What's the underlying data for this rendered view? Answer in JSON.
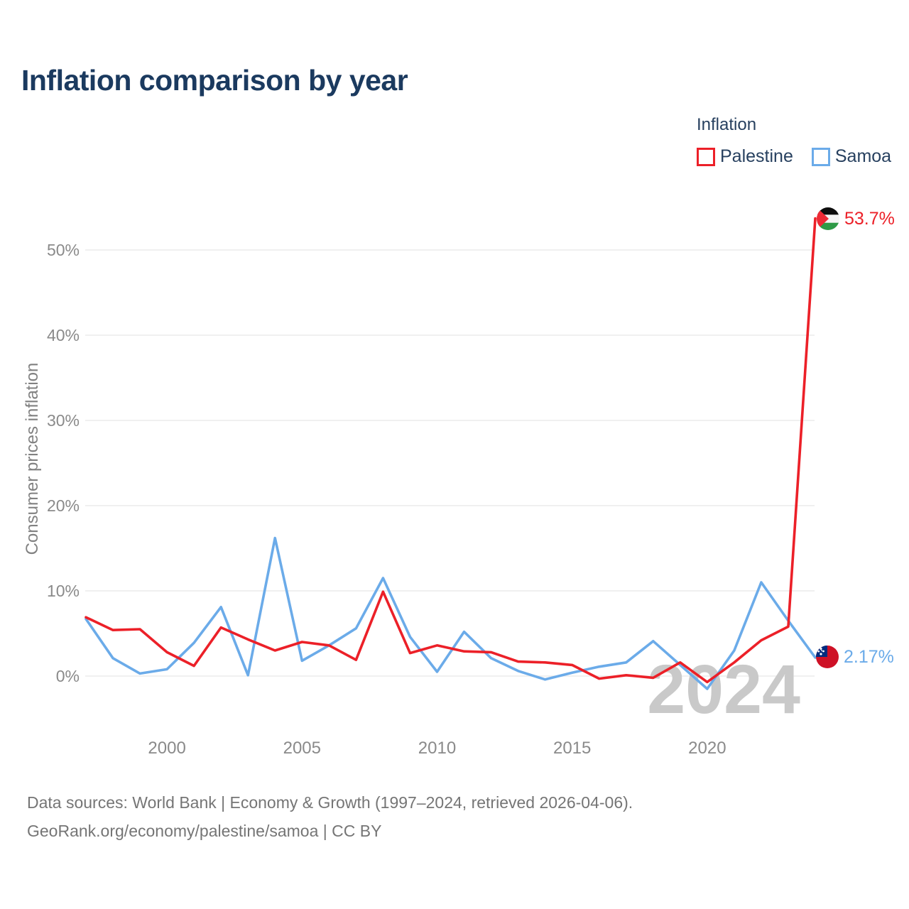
{
  "title": "Inflation comparison by year",
  "legend": {
    "title": "Inflation",
    "items": [
      {
        "label": "Palestine"
      },
      {
        "label": "Samoa"
      }
    ]
  },
  "watermark": "2024",
  "end_labels": {
    "palestine": "53.7%",
    "samoa": "2.17%"
  },
  "footer": {
    "line1": "Data sources: World Bank | Economy & Growth (1997–2024, retrieved 2026-04-06).",
    "line2": "GeoRank.org/economy/palestine/samoa | CC BY"
  },
  "colors": {
    "palestine_red": "#ec2028",
    "samoa_blue": "#6babe9",
    "title_navy": "#1b3a5f",
    "tick_gray": "#8a8a8a",
    "grid_gray": "#ececec",
    "watermark_gray": "#c9c9c9",
    "footer_gray": "#757575"
  },
  "chart_data": {
    "type": "line",
    "title": "Inflation comparison by year",
    "ylabel": "Consumer prices inflation",
    "xlabel": "",
    "x": [
      1997,
      1998,
      1999,
      2000,
      2001,
      2002,
      2003,
      2004,
      2005,
      2006,
      2007,
      2008,
      2009,
      2010,
      2011,
      2012,
      2013,
      2014,
      2015,
      2016,
      2017,
      2018,
      2019,
      2020,
      2021,
      2022,
      2023,
      2024
    ],
    "series": [
      {
        "name": "Palestine",
        "color": "#ec2028",
        "values": [
          6.9,
          5.4,
          5.5,
          2.8,
          1.2,
          5.7,
          4.3,
          3.0,
          4.0,
          3.6,
          1.9,
          9.9,
          2.7,
          3.6,
          2.9,
          2.8,
          1.7,
          1.6,
          1.3,
          -0.3,
          0.1,
          -0.2,
          1.6,
          -0.7,
          1.6,
          4.2,
          5.8,
          53.7
        ]
      },
      {
        "name": "Samoa",
        "color": "#6babe9",
        "values": [
          6.7,
          2.1,
          0.3,
          0.8,
          3.9,
          8.1,
          0.1,
          16.2,
          1.8,
          3.6,
          5.6,
          11.5,
          4.6,
          0.5,
          5.2,
          2.1,
          0.6,
          -0.4,
          0.4,
          1.1,
          1.6,
          4.1,
          1.3,
          -1.5,
          3.0,
          11.0,
          6.5,
          2.17
        ]
      }
    ],
    "yticks": [
      0,
      10,
      20,
      30,
      40,
      50
    ],
    "xticks": [
      2000,
      2005,
      2010,
      2015,
      2020
    ],
    "ylim": [
      -5,
      55
    ],
    "xlim": [
      1997,
      2024
    ],
    "grid": true,
    "legend_position": "top-right",
    "end_annotations": [
      {
        "series": "Palestine",
        "year": 2024,
        "label": "53.7%"
      },
      {
        "series": "Samoa",
        "year": 2024,
        "label": "2.17%"
      }
    ]
  }
}
